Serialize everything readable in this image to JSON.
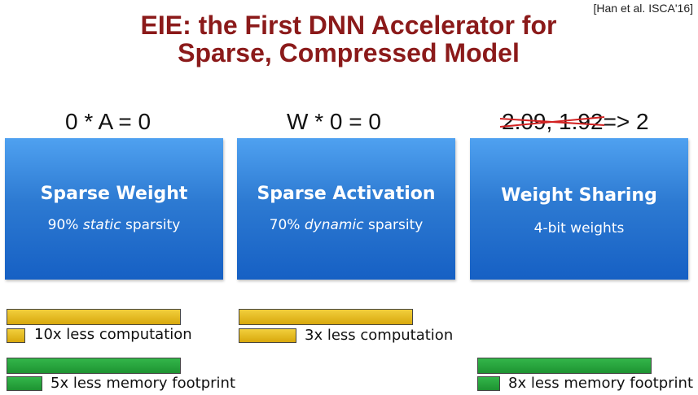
{
  "citation": "[Han et al. ISCA'16]",
  "title": {
    "line1": "EIE: the First DNN Accelerator for",
    "line2": "Sparse, Compressed Model"
  },
  "columns": [
    {
      "equation": "0 * A = 0",
      "box_title": "Sparse Weight",
      "box_sub_prefix": "90% ",
      "box_sub_emph": "static",
      "box_sub_suffix": " sparsity",
      "benefits": [
        "10x less computation",
        "5x less memory footprint"
      ]
    },
    {
      "equation": "W * 0 = 0",
      "box_title": "Sparse Activation",
      "box_sub_prefix": "70% ",
      "box_sub_emph": "dynamic",
      "box_sub_suffix": " sparsity",
      "benefits": [
        "3x less computation"
      ]
    },
    {
      "equation_struck": "2.09, 1.92",
      "equation_rest": "=> 2",
      "box_title": "Weight Sharing",
      "box_sub": "4-bit weights",
      "benefits": [
        "8x less memory footprint"
      ]
    }
  ],
  "colors": {
    "title": "#8b1a1a",
    "box": "#2d7ad2",
    "computation_bar": "#e8bd20",
    "memory_bar": "#27a33d",
    "strike": "#d22222"
  }
}
